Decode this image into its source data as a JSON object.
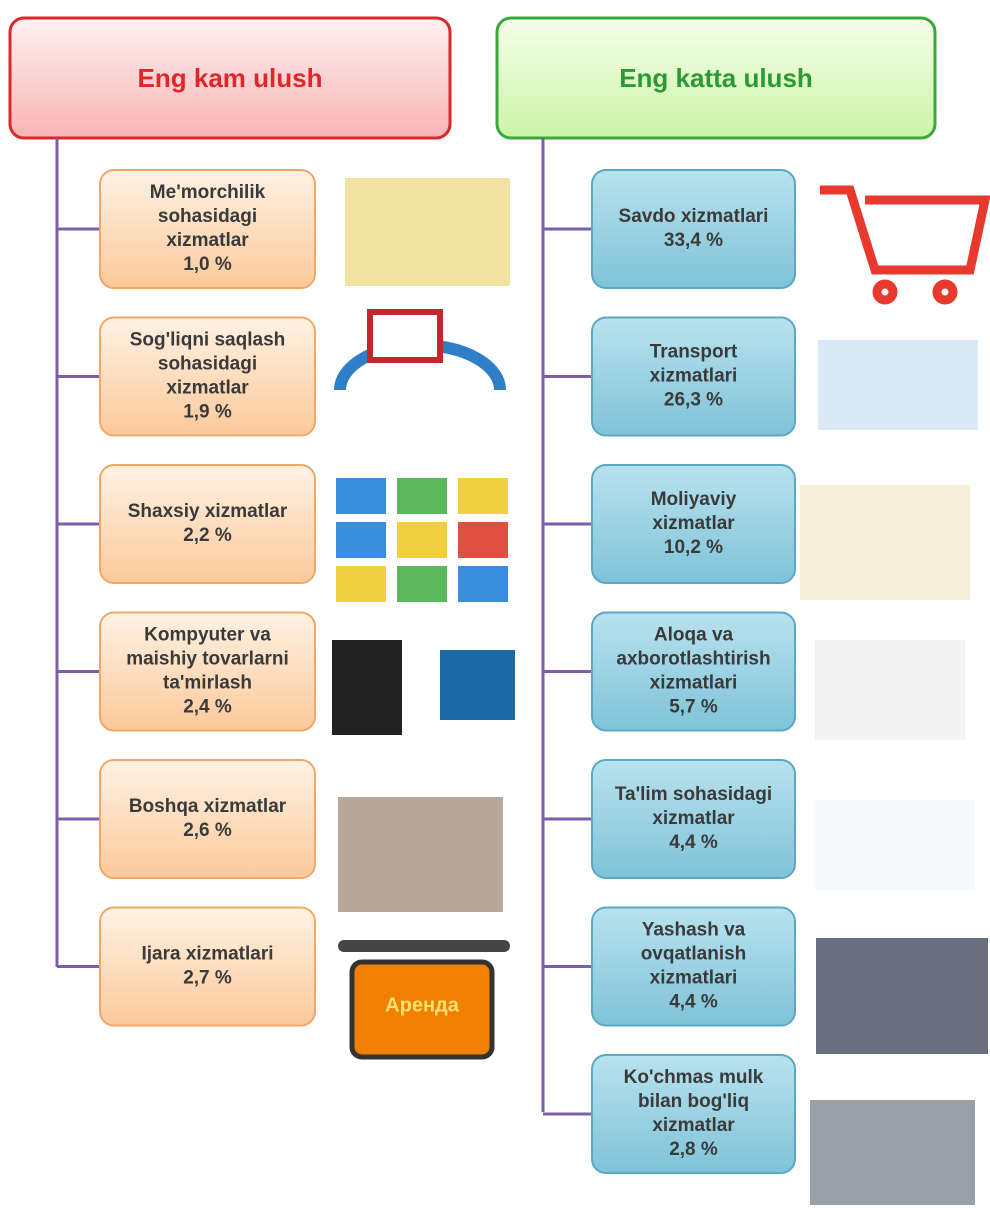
{
  "left": {
    "title": "Eng kam ulush",
    "items": [
      {
        "lines": [
          "Me'morchilik",
          "sohasidagi",
          "xizmatlar"
        ],
        "value": "1,0 %"
      },
      {
        "lines": [
          "Sog'liqni saqlash",
          "sohasidagi",
          "xizmatlar"
        ],
        "value": "1,9 %"
      },
      {
        "lines": [
          "Shaxsiy xizmatlar"
        ],
        "value": "2,2 %"
      },
      {
        "lines": [
          "Kompyuter va",
          "maishiy tovarlarni",
          "ta'mirlash"
        ],
        "value": "2,4 %"
      },
      {
        "lines": [
          "Boshqa xizmatlar"
        ],
        "value": "2,6 %"
      },
      {
        "lines": [
          "Ijara xizmatlari"
        ],
        "value": "2,7 %"
      }
    ]
  },
  "right": {
    "title": "Eng katta ulush",
    "items": [
      {
        "lines": [
          "Savdo xizmatlari"
        ],
        "value": "33,4 %"
      },
      {
        "lines": [
          "Transport",
          "xizmatlari"
        ],
        "value": "26,3 %"
      },
      {
        "lines": [
          "Moliyaviy",
          "xizmatlar"
        ],
        "value": "10,2 %"
      },
      {
        "lines": [
          "Aloqa va",
          "axborotlashtirish",
          "xizmatlari"
        ],
        "value": "5,7 %"
      },
      {
        "lines": [
          "Ta'lim sohasidagi",
          "xizmatlar"
        ],
        "value": "4,4 %"
      },
      {
        "lines": [
          "Yashash va",
          "ovqatlanish",
          "xizmatlari"
        ],
        "value": "4,4 %"
      },
      {
        "lines": [
          "Ko'chmas mulk",
          "bilan bog'liq",
          "xizmatlar"
        ],
        "value": "2,8 %"
      }
    ]
  },
  "rent_sign": "Аренда"
}
